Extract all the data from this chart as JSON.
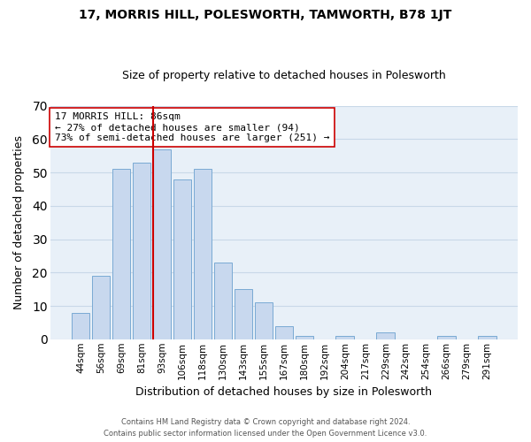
{
  "title": "17, MORRIS HILL, POLESWORTH, TAMWORTH, B78 1JT",
  "subtitle": "Size of property relative to detached houses in Polesworth",
  "xlabel": "Distribution of detached houses by size in Polesworth",
  "ylabel": "Number of detached properties",
  "bar_labels": [
    "44sqm",
    "56sqm",
    "69sqm",
    "81sqm",
    "93sqm",
    "106sqm",
    "118sqm",
    "130sqm",
    "143sqm",
    "155sqm",
    "167sqm",
    "180sqm",
    "192sqm",
    "204sqm",
    "217sqm",
    "229sqm",
    "242sqm",
    "254sqm",
    "266sqm",
    "279sqm",
    "291sqm"
  ],
  "bar_values": [
    8,
    19,
    51,
    53,
    57,
    48,
    51,
    23,
    15,
    11,
    4,
    1,
    0,
    1,
    0,
    2,
    0,
    0,
    1,
    0,
    1
  ],
  "bar_color": "#c8d8ee",
  "bar_edgecolor": "#7aaad4",
  "ylim": [
    0,
    70
  ],
  "yticks": [
    0,
    10,
    20,
    30,
    40,
    50,
    60,
    70
  ],
  "vline_color": "#cc0000",
  "annotation_title": "17 MORRIS HILL: 86sqm",
  "annotation_line1": "← 27% of detached houses are smaller (94)",
  "annotation_line2": "73% of semi-detached houses are larger (251) →",
  "annotation_box_facecolor": "#ffffff",
  "annotation_box_edgecolor": "#cc0000",
  "footer1": "Contains HM Land Registry data © Crown copyright and database right 2024.",
  "footer2": "Contains public sector information licensed under the Open Government Licence v3.0.",
  "background_color": "#ffffff",
  "plot_facecolor": "#e8f0f8",
  "grid_color": "#c8d8e8"
}
